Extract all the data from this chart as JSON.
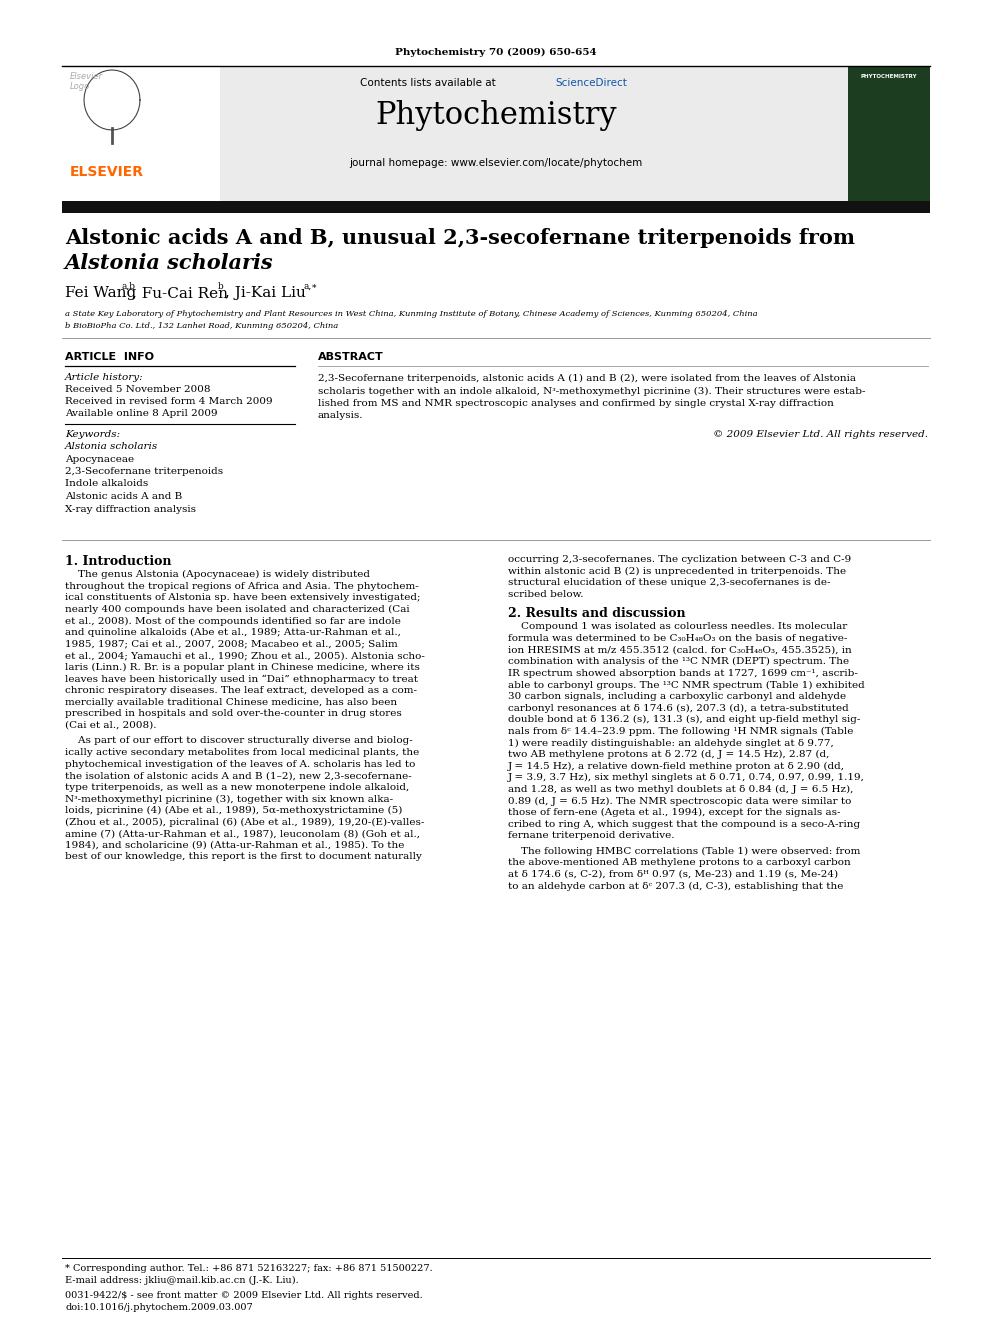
{
  "journal_ref": "Phytochemistry 70 (2009) 650-654",
  "contents_text": "Contents lists available at ",
  "sciencedirect_text": "ScienceDirect",
  "journal_name": "Phytochemistry",
  "homepage_text": "journal homepage: www.elsevier.com/locate/phytochem",
  "elsevier_color": "#FF6600",
  "title_part1": "Alstonic acids A and B, unusual 2,3-secofernane triterpenoids from ",
  "title_italic": "Alstonia scholaris",
  "affil_a": "a State Key Laboratory of Phytochemistry and Plant Resources in West China, Kunming Institute of Botany, Chinese Academy of Sciences, Kunming 650204, China",
  "affil_b": "b BioBioPha Co. Ltd., 132 Lanhei Road, Kunming 650204, China",
  "article_info_header": "ARTICLE INFO",
  "abstract_header": "ABSTRACT",
  "article_history_label": "Article history:",
  "received1": "Received 5 November 2008",
  "received2": "Received in revised form 4 March 2009",
  "available": "Available online 8 April 2009",
  "keywords_label": "Keywords:",
  "keywords": [
    "Alstonia scholaris",
    "Apocynaceae",
    "2,3-Secofernane triterpenoids",
    "Indole alkaloids",
    "Alstonic acids A and B",
    "X-ray diffraction analysis"
  ],
  "keywords_italic": [
    true,
    false,
    false,
    false,
    false,
    false
  ],
  "abstract_lines": [
    "2,3-Secofernane triterpenoids, alstonic acids A (1) and B (2), were isolated from the leaves of Alstonia",
    "scholaris together with an indole alkaloid, Nᶟ-methoxymethyl picrinine (3). Their structures were estab-",
    "lished from MS and NMR spectroscopic analyses and confirmed by single crystal X-ray diffraction",
    "analysis."
  ],
  "copyright": "© 2009 Elsevier Ltd. All rights reserved.",
  "intro_header": "1. Introduction",
  "intro_para1_lines": [
    "    The genus Alstonia (Apocynaceae) is widely distributed",
    "throughout the tropical regions of Africa and Asia. The phytochem-",
    "ical constituents of Alstonia sp. have been extensively investigated;",
    "nearly 400 compounds have been isolated and characterized (Cai",
    "et al., 2008). Most of the compounds identified so far are indole",
    "and quinoline alkaloids (Abe et al., 1989; Atta-ur-Rahman et al.,",
    "1985, 1987; Cai et al., 2007, 2008; Macabeo et al., 2005; Salim",
    "et al., 2004; Yamauchi et al., 1990; Zhou et al., 2005). Alstonia scho-",
    "laris (Linn.) R. Br. is a popular plant in Chinese medicine, where its",
    "leaves have been historically used in “Dai” ethnopharmacy to treat",
    "chronic respiratory diseases. The leaf extract, developed as a com-",
    "mercially available traditional Chinese medicine, has also been",
    "prescribed in hospitals and sold over-the-counter in drug stores",
    "(Cai et al., 2008)."
  ],
  "intro_para2_lines": [
    "    As part of our effort to discover structurally diverse and biolog-",
    "ically active secondary metabolites from local medicinal plants, the",
    "phytochemical investigation of the leaves of A. scholaris has led to",
    "the isolation of alstonic acids A and B (1–2), new 2,3-secofernane-",
    "type triterpenoids, as well as a new monoterpene indole alkaloid,",
    "Nᶟ-methoxymethyl picrinine (3), together with six known alka-",
    "loids, picrinine (4) (Abe et al., 1989), 5α-methoxystrictamine (5)",
    "(Zhou et al., 2005), picralinal (6) (Abe et al., 1989), 19,20-(E)-valles-",
    "amine (7) (Atta-ur-Rahman et al., 1987), leuconolam (8) (Goh et al.,",
    "1984), and scholaricine (9) (Atta-ur-Rahman et al., 1985). To the",
    "best of our knowledge, this report is the first to document naturally"
  ],
  "results_header": "2. Results and discussion",
  "occurring_lines": [
    "occurring 2,3-secofernanes. The cyclization between C-3 and C-9",
    "within alstonic acid B (2) is unprecedented in triterpenoids. The",
    "structural elucidation of these unique 2,3-secofernanes is de-",
    "scribed below."
  ],
  "results_para1_lines": [
    "    Compound 1 was isolated as colourless needles. Its molecular",
    "formula was determined to be C₃₀H₄₈O₃ on the basis of negative-",
    "ion HRESIMS at m/z 455.3512 (calcd. for C₃₀H₄₈O₃, 455.3525), in",
    "combination with analysis of the ¹³C NMR (DEPT) spectrum. The",
    "IR spectrum showed absorption bands at 1727, 1699 cm⁻¹, ascrib-",
    "able to carbonyl groups. The ¹³C NMR spectrum (Table 1) exhibited",
    "30 carbon signals, including a carboxylic carbonyl and aldehyde",
    "carbonyl resonances at δ 174.6 (s), 207.3 (d), a tetra-substituted",
    "double bond at δ 136.2 (s), 131.3 (s), and eight up-field methyl sig-",
    "nals from δᶜ 14.4–23.9 ppm. The following ¹H NMR signals (Table",
    "1) were readily distinguishable: an aldehyde singlet at δ 9.77,",
    "two AB methylene protons at δ 2.72 (d, J = 14.5 Hz), 2.87 (d,",
    "J = 14.5 Hz), a relative down-field methine proton at δ 2.90 (dd,",
    "J = 3.9, 3.7 Hz), six methyl singlets at δ 0.71, 0.74, 0.97, 0.99, 1.19,",
    "and 1.28, as well as two methyl doublets at δ 0.84 (d, J = 6.5 Hz),",
    "0.89 (d, J = 6.5 Hz). The NMR spectroscopic data were similar to",
    "those of fern-ene (Ageta et al., 1994), except for the signals as-",
    "cribed to ring A, which suggest that the compound is a seco-A-ring",
    "fernane triterpenoid derivative."
  ],
  "results_para2_lines": [
    "    The following HMBC correlations (Table 1) were observed: from",
    "the above-mentioned AB methylene protons to a carboxyl carbon",
    "at δ 174.6 (s, C-2), from δᴴ 0.97 (s, Me-23) and 1.19 (s, Me-24)",
    "to an aldehyde carbon at δᶜ 207.3 (d, C-3), establishing that the"
  ],
  "footnote_star": "* Corresponding author. Tel.: +86 871 52163227; fax: +86 871 51500227.",
  "footnote_email": "E-mail address: jkliu@mail.kib.ac.cn (J.-K. Liu).",
  "footnote_issn": "0031-9422/$ - see front matter © 2009 Elsevier Ltd. All rights reserved.",
  "footnote_doi": "doi:10.1016/j.phytochem.2009.03.007",
  "bg_color": "#ffffff"
}
